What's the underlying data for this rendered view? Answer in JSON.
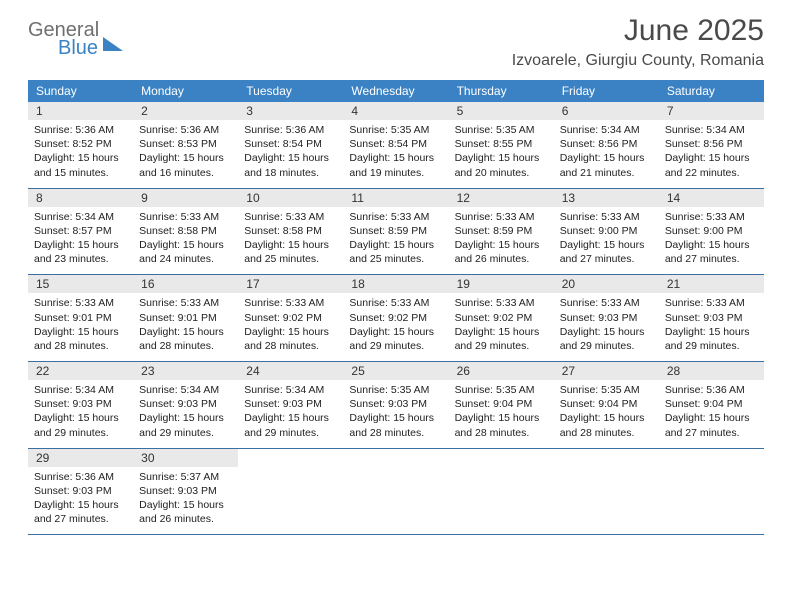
{
  "logo": {
    "line1": "General",
    "line2": "Blue"
  },
  "title": "June 2025",
  "location": "Izvoarele, Giurgiu County, Romania",
  "colors": {
    "header_bg": "#3a82c4",
    "header_text": "#ffffff",
    "daynum_bg": "#e9e9e9",
    "week_border": "#3a6fa0",
    "logo_gray": "#6f6f6f",
    "logo_blue": "#3a82c4",
    "title_color": "#4a4a4a"
  },
  "weekdays": [
    "Sunday",
    "Monday",
    "Tuesday",
    "Wednesday",
    "Thursday",
    "Friday",
    "Saturday"
  ],
  "weeks": [
    [
      {
        "num": "1",
        "sunrise": "Sunrise: 5:36 AM",
        "sunset": "Sunset: 8:52 PM",
        "daylight": "Daylight: 15 hours and 15 minutes."
      },
      {
        "num": "2",
        "sunrise": "Sunrise: 5:36 AM",
        "sunset": "Sunset: 8:53 PM",
        "daylight": "Daylight: 15 hours and 16 minutes."
      },
      {
        "num": "3",
        "sunrise": "Sunrise: 5:36 AM",
        "sunset": "Sunset: 8:54 PM",
        "daylight": "Daylight: 15 hours and 18 minutes."
      },
      {
        "num": "4",
        "sunrise": "Sunrise: 5:35 AM",
        "sunset": "Sunset: 8:54 PM",
        "daylight": "Daylight: 15 hours and 19 minutes."
      },
      {
        "num": "5",
        "sunrise": "Sunrise: 5:35 AM",
        "sunset": "Sunset: 8:55 PM",
        "daylight": "Daylight: 15 hours and 20 minutes."
      },
      {
        "num": "6",
        "sunrise": "Sunrise: 5:34 AM",
        "sunset": "Sunset: 8:56 PM",
        "daylight": "Daylight: 15 hours and 21 minutes."
      },
      {
        "num": "7",
        "sunrise": "Sunrise: 5:34 AM",
        "sunset": "Sunset: 8:56 PM",
        "daylight": "Daylight: 15 hours and 22 minutes."
      }
    ],
    [
      {
        "num": "8",
        "sunrise": "Sunrise: 5:34 AM",
        "sunset": "Sunset: 8:57 PM",
        "daylight": "Daylight: 15 hours and 23 minutes."
      },
      {
        "num": "9",
        "sunrise": "Sunrise: 5:33 AM",
        "sunset": "Sunset: 8:58 PM",
        "daylight": "Daylight: 15 hours and 24 minutes."
      },
      {
        "num": "10",
        "sunrise": "Sunrise: 5:33 AM",
        "sunset": "Sunset: 8:58 PM",
        "daylight": "Daylight: 15 hours and 25 minutes."
      },
      {
        "num": "11",
        "sunrise": "Sunrise: 5:33 AM",
        "sunset": "Sunset: 8:59 PM",
        "daylight": "Daylight: 15 hours and 25 minutes."
      },
      {
        "num": "12",
        "sunrise": "Sunrise: 5:33 AM",
        "sunset": "Sunset: 8:59 PM",
        "daylight": "Daylight: 15 hours and 26 minutes."
      },
      {
        "num": "13",
        "sunrise": "Sunrise: 5:33 AM",
        "sunset": "Sunset: 9:00 PM",
        "daylight": "Daylight: 15 hours and 27 minutes."
      },
      {
        "num": "14",
        "sunrise": "Sunrise: 5:33 AM",
        "sunset": "Sunset: 9:00 PM",
        "daylight": "Daylight: 15 hours and 27 minutes."
      }
    ],
    [
      {
        "num": "15",
        "sunrise": "Sunrise: 5:33 AM",
        "sunset": "Sunset: 9:01 PM",
        "daylight": "Daylight: 15 hours and 28 minutes."
      },
      {
        "num": "16",
        "sunrise": "Sunrise: 5:33 AM",
        "sunset": "Sunset: 9:01 PM",
        "daylight": "Daylight: 15 hours and 28 minutes."
      },
      {
        "num": "17",
        "sunrise": "Sunrise: 5:33 AM",
        "sunset": "Sunset: 9:02 PM",
        "daylight": "Daylight: 15 hours and 28 minutes."
      },
      {
        "num": "18",
        "sunrise": "Sunrise: 5:33 AM",
        "sunset": "Sunset: 9:02 PM",
        "daylight": "Daylight: 15 hours and 29 minutes."
      },
      {
        "num": "19",
        "sunrise": "Sunrise: 5:33 AM",
        "sunset": "Sunset: 9:02 PM",
        "daylight": "Daylight: 15 hours and 29 minutes."
      },
      {
        "num": "20",
        "sunrise": "Sunrise: 5:33 AM",
        "sunset": "Sunset: 9:03 PM",
        "daylight": "Daylight: 15 hours and 29 minutes."
      },
      {
        "num": "21",
        "sunrise": "Sunrise: 5:33 AM",
        "sunset": "Sunset: 9:03 PM",
        "daylight": "Daylight: 15 hours and 29 minutes."
      }
    ],
    [
      {
        "num": "22",
        "sunrise": "Sunrise: 5:34 AM",
        "sunset": "Sunset: 9:03 PM",
        "daylight": "Daylight: 15 hours and 29 minutes."
      },
      {
        "num": "23",
        "sunrise": "Sunrise: 5:34 AM",
        "sunset": "Sunset: 9:03 PM",
        "daylight": "Daylight: 15 hours and 29 minutes."
      },
      {
        "num": "24",
        "sunrise": "Sunrise: 5:34 AM",
        "sunset": "Sunset: 9:03 PM",
        "daylight": "Daylight: 15 hours and 29 minutes."
      },
      {
        "num": "25",
        "sunrise": "Sunrise: 5:35 AM",
        "sunset": "Sunset: 9:03 PM",
        "daylight": "Daylight: 15 hours and 28 minutes."
      },
      {
        "num": "26",
        "sunrise": "Sunrise: 5:35 AM",
        "sunset": "Sunset: 9:04 PM",
        "daylight": "Daylight: 15 hours and 28 minutes."
      },
      {
        "num": "27",
        "sunrise": "Sunrise: 5:35 AM",
        "sunset": "Sunset: 9:04 PM",
        "daylight": "Daylight: 15 hours and 28 minutes."
      },
      {
        "num": "28",
        "sunrise": "Sunrise: 5:36 AM",
        "sunset": "Sunset: 9:04 PM",
        "daylight": "Daylight: 15 hours and 27 minutes."
      }
    ],
    [
      {
        "num": "29",
        "sunrise": "Sunrise: 5:36 AM",
        "sunset": "Sunset: 9:03 PM",
        "daylight": "Daylight: 15 hours and 27 minutes."
      },
      {
        "num": "30",
        "sunrise": "Sunrise: 5:37 AM",
        "sunset": "Sunset: 9:03 PM",
        "daylight": "Daylight: 15 hours and 26 minutes."
      },
      null,
      null,
      null,
      null,
      null
    ]
  ]
}
